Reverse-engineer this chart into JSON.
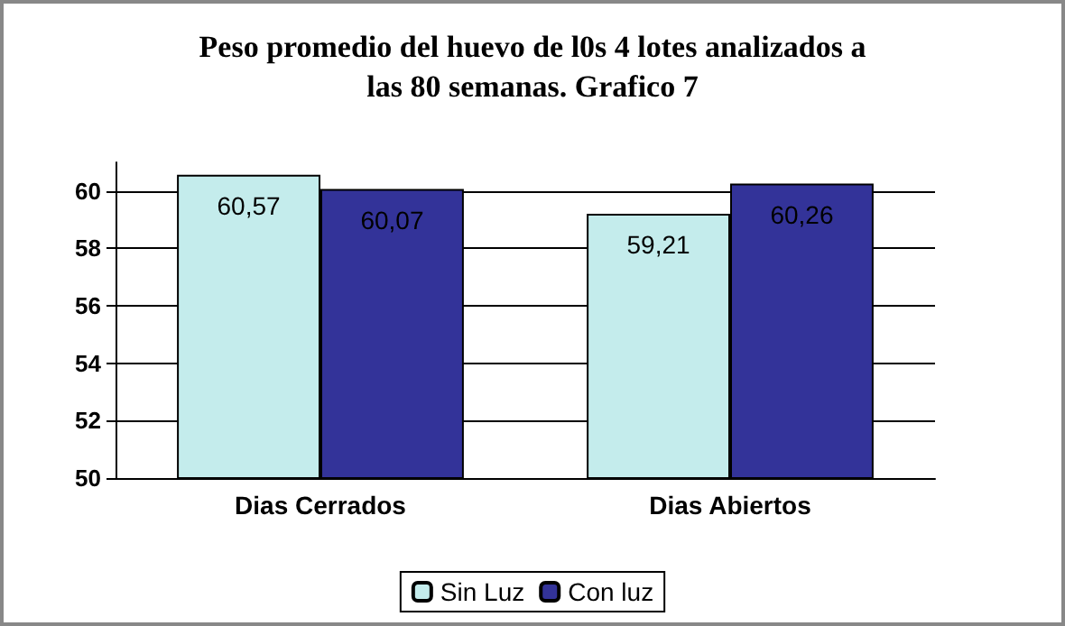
{
  "chart_data": {
    "type": "bar",
    "title": "Peso promedio del huevo de l0s 4 lotes analizados a\nlas 80 semanas. Grafico 7",
    "categories": [
      "Dias Cerrados",
      "Dias Abiertos"
    ],
    "series": [
      {
        "name": "Sin Luz",
        "color": "#c4ecec",
        "values": [
          60.57,
          59.21
        ],
        "value_labels": [
          "60,57",
          "59,21"
        ]
      },
      {
        "name": "Con luz",
        "color": "#333399",
        "values": [
          60.07,
          60.26
        ],
        "value_labels": [
          "60,07",
          "60,26"
        ]
      }
    ],
    "ylim": [
      50,
      61
    ],
    "yticks": [
      50,
      52,
      54,
      56,
      58,
      60
    ],
    "grid": "y",
    "legend": "bottom"
  }
}
